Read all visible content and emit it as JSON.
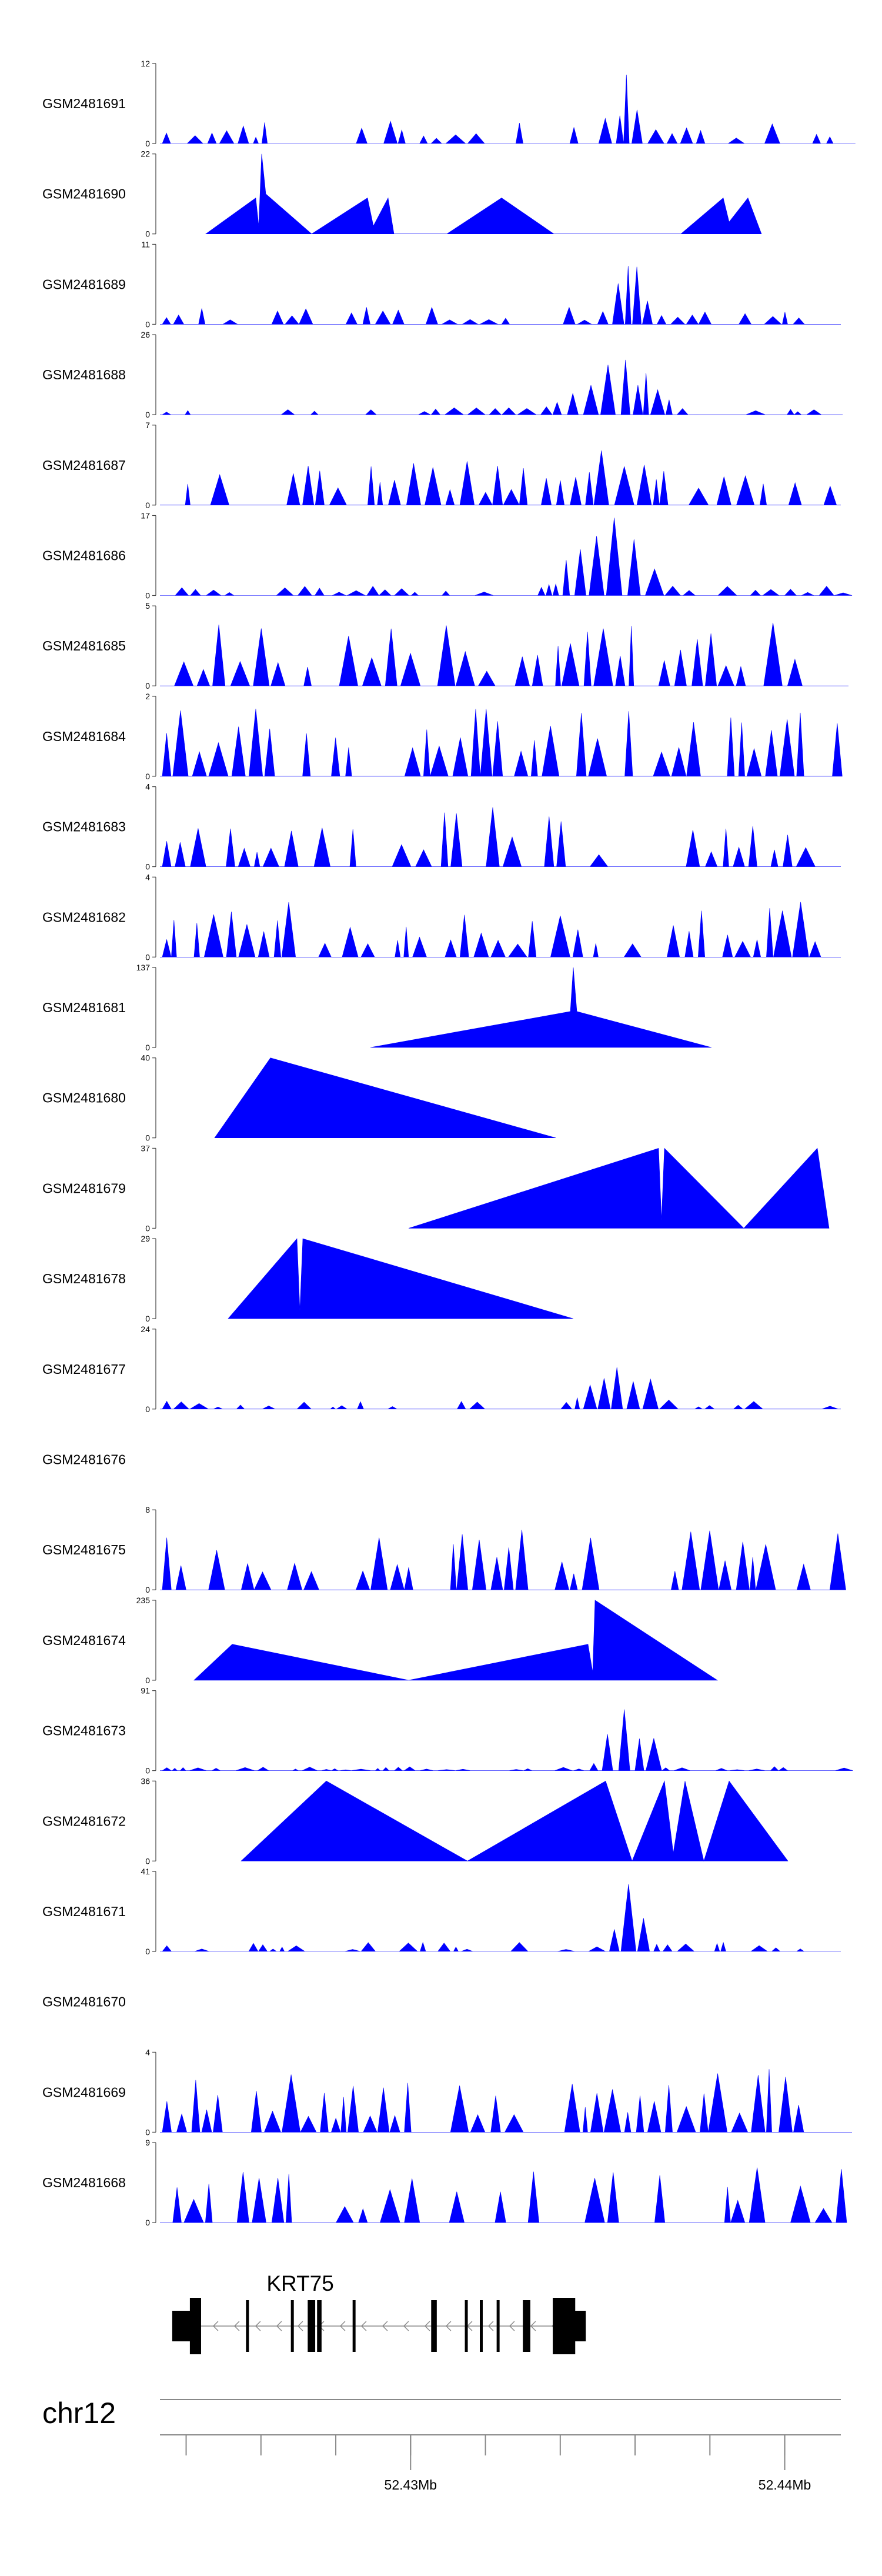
{
  "chart_data": {
    "type": "area",
    "title": "",
    "fill_color": "#0000ff",
    "chromosome": "chr12",
    "x_axis": {
      "tick_labels": [
        "52.43Mb",
        "52.44Mb"
      ],
      "labeled_ticks": [
        52430000,
        52440000
      ],
      "minor_ticks": [
        52424000,
        52426000,
        52428000,
        52430000,
        52432000,
        52434000,
        52436000,
        52438000,
        52440000
      ],
      "range": [
        52423300,
        52441500
      ]
    },
    "gene": {
      "name": "KRT75",
      "strand": "-",
      "start": 52424100,
      "end": 52434400,
      "exons": [
        [
          52424100,
          52424400
        ],
        [
          52425600,
          52425650
        ],
        [
          52426800,
          52426850
        ],
        [
          52427250,
          52427450
        ],
        [
          52427500,
          52427620
        ],
        [
          52428450,
          52428500
        ],
        [
          52430550,
          52430700
        ],
        [
          52431450,
          52431500
        ],
        [
          52431850,
          52431900
        ],
        [
          52432300,
          52432350
        ],
        [
          52433000,
          52433200
        ],
        [
          52433800,
          52434400
        ]
      ]
    },
    "series": [
      {
        "name": "GSM2481691",
        "ymax": 12
      },
      {
        "name": "GSM2481690",
        "ymax": 22
      },
      {
        "name": "GSM2481689",
        "ymax": 11
      },
      {
        "name": "GSM2481688",
        "ymax": 26
      },
      {
        "name": "GSM2481687",
        "ymax": 7
      },
      {
        "name": "GSM2481686",
        "ymax": 17
      },
      {
        "name": "GSM2481685",
        "ymax": 5
      },
      {
        "name": "GSM2481684",
        "ymax": 2
      },
      {
        "name": "GSM2481683",
        "ymax": 4
      },
      {
        "name": "GSM2481682",
        "ymax": 4
      },
      {
        "name": "GSM2481681",
        "ymax": 137
      },
      {
        "name": "GSM2481680",
        "ymax": 40
      },
      {
        "name": "GSM2481679",
        "ymax": 37
      },
      {
        "name": "GSM2481678",
        "ymax": 29
      },
      {
        "name": "GSM2481677",
        "ymax": 24
      },
      {
        "name": "GSM2481676",
        "ymax": null
      },
      {
        "name": "GSM2481675",
        "ymax": 8
      },
      {
        "name": "GSM2481674",
        "ymax": 235
      },
      {
        "name": "GSM2481673",
        "ymax": 91
      },
      {
        "name": "GSM2481672",
        "ymax": 36
      },
      {
        "name": "GSM2481671",
        "ymax": 41
      },
      {
        "name": "GSM2481670",
        "ymax": null
      },
      {
        "name": "GSM2481669",
        "ymax": 4
      },
      {
        "name": "GSM2481668",
        "ymax": 9
      }
    ]
  }
}
